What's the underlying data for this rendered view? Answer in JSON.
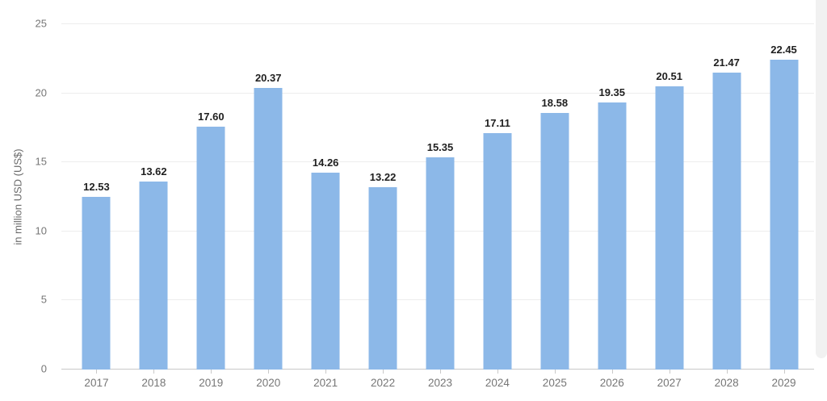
{
  "chart_data": {
    "type": "bar",
    "categories": [
      "2017",
      "2018",
      "2019",
      "2020",
      "2021",
      "2022",
      "2023",
      "2024",
      "2025",
      "2026",
      "2027",
      "2028",
      "2029"
    ],
    "values": [
      12.53,
      13.62,
      17.6,
      20.37,
      14.26,
      13.22,
      15.35,
      17.11,
      18.58,
      19.35,
      20.51,
      21.47,
      22.45
    ],
    "title": "",
    "xlabel": "",
    "ylabel": "in million USD (US$)",
    "ylim": [
      0,
      25
    ],
    "yticks": [
      0,
      5,
      10,
      15,
      20,
      25
    ],
    "grid": true,
    "legend": false,
    "value_label_decimals": 2,
    "bar_color": "#8cb8e8"
  },
  "colors": {
    "bar": "#8cb8e8",
    "gridline": "#ededed",
    "axis_line": "#c9c9c9",
    "tick_text": "#767676",
    "value_text": "#1f1f1f",
    "right_band": "#f1f1f1"
  }
}
